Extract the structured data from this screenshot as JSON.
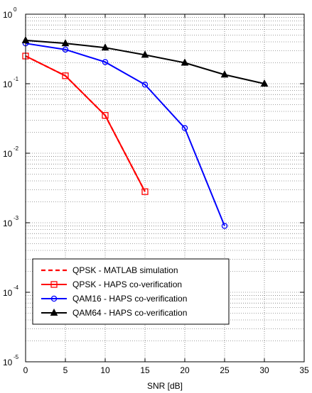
{
  "chart_data": {
    "type": "line",
    "xlabel": "SNR [dB]",
    "ylabel": "",
    "yscale": "log",
    "xlim": [
      0,
      35
    ],
    "ylim": [
      1e-05,
      1
    ],
    "xticks": [
      0,
      5,
      10,
      15,
      20,
      25,
      30,
      35
    ],
    "xtick_labels": [
      "0",
      "5",
      "10",
      "15",
      "20",
      "25",
      "30",
      "35"
    ],
    "yticks": [
      1,
      0.1,
      0.01,
      0.001,
      0.0001,
      1e-05
    ],
    "ytick_labels": [
      {
        "base": "10",
        "exp": "0"
      },
      {
        "base": "10",
        "exp": "-1"
      },
      {
        "base": "10",
        "exp": "-2"
      },
      {
        "base": "10",
        "exp": "-3"
      },
      {
        "base": "10",
        "exp": "-4"
      },
      {
        "base": "10",
        "exp": "-5"
      }
    ],
    "grid": "dotted, major and minor on y",
    "legend_position": "lower-left",
    "series": [
      {
        "name": "QPSK - MATLAB simulation",
        "color": "#ff0000",
        "style": "dashed",
        "marker": "none",
        "x": [
          0,
          5,
          10,
          15
        ],
        "y": [
          0.25,
          0.13,
          0.035,
          0.0028
        ]
      },
      {
        "name": "QPSK - HAPS co-verification",
        "color": "#ff0000",
        "style": "solid",
        "marker": "square",
        "x": [
          0,
          5,
          10,
          15
        ],
        "y": [
          0.25,
          0.13,
          0.035,
          0.0028
        ]
      },
      {
        "name": "QAM16 - HAPS co-verification",
        "color": "#0000ff",
        "style": "solid",
        "marker": "circle",
        "x": [
          0,
          5,
          10,
          15,
          20,
          25
        ],
        "y": [
          0.38,
          0.31,
          0.205,
          0.097,
          0.023,
          0.0009
        ]
      },
      {
        "name": "QAM64 - HAPS co-verification",
        "color": "#000000",
        "style": "solid",
        "marker": "triangle",
        "x": [
          0,
          5,
          10,
          15,
          20,
          25,
          30
        ],
        "y": [
          0.42,
          0.38,
          0.33,
          0.26,
          0.2,
          0.135,
          0.1
        ]
      }
    ]
  }
}
